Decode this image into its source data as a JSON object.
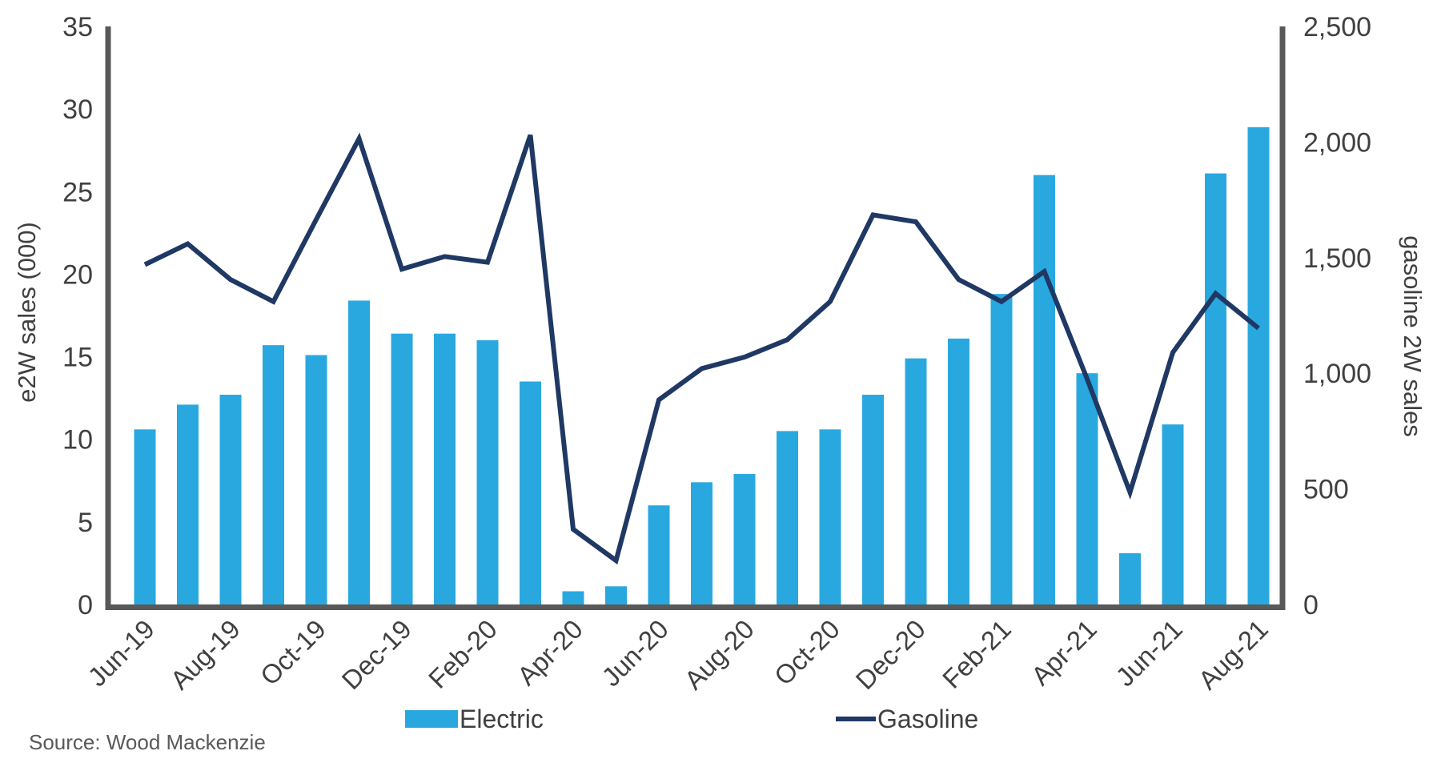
{
  "chart_data": {
    "type": "bar",
    "subtype": "combo-bar-line-dual-axis",
    "categories": [
      "Jun-19",
      "Jul-19",
      "Aug-19",
      "Sep-19",
      "Oct-19",
      "Nov-19",
      "Dec-19",
      "Jan-20",
      "Feb-20",
      "Mar-20",
      "Apr-20",
      "May-20",
      "Jun-20",
      "Jul-20",
      "Aug-20",
      "Sep-20",
      "Oct-20",
      "Nov-20",
      "Dec-20",
      "Jan-21",
      "Feb-21",
      "Mar-21",
      "Apr-21",
      "May-21",
      "Jun-21",
      "Jul-21",
      "Aug-21"
    ],
    "x_tick_labels": [
      "Jun-19",
      "Aug-19",
      "Oct-19",
      "Dec-19",
      "Feb-20",
      "Apr-20",
      "Jun-20",
      "Aug-20",
      "Oct-20",
      "Dec-20",
      "Feb-21",
      "Apr-21",
      "Jun-21",
      "Aug-21"
    ],
    "series": [
      {
        "name": "Electric",
        "type": "bar",
        "axis": "left",
        "color": "#29A8E0",
        "values": [
          10.6,
          12.1,
          12.7,
          15.7,
          15.1,
          18.4,
          16.4,
          16.4,
          16.0,
          13.5,
          0.8,
          1.1,
          6.0,
          7.4,
          7.9,
          10.5,
          10.6,
          12.7,
          14.9,
          16.1,
          18.8,
          26.0,
          14.0,
          3.1,
          10.9,
          26.1,
          28.9
        ]
      },
      {
        "name": "Gasoline",
        "type": "line",
        "axis": "right",
        "color": "#1F3864",
        "values": [
          1470,
          1560,
          1405,
          1310,
          1665,
          2015,
          1450,
          1505,
          1480,
          2030,
          325,
          190,
          885,
          1020,
          1070,
          1145,
          1310,
          1685,
          1655,
          1405,
          1310,
          1440,
          975,
          485,
          1090,
          1345,
          1195
        ]
      }
    ],
    "left_axis": {
      "label": "e2W sales (000)",
      "min": 0,
      "max": 35,
      "tick_step": 5,
      "tick_labels": [
        "0",
        "5",
        "10",
        "15",
        "20",
        "25",
        "30",
        "35"
      ]
    },
    "right_axis": {
      "label": "gasoline 2W sales",
      "min": 0,
      "max": 2500,
      "tick_step": 500,
      "tick_labels": [
        "0",
        "500",
        "1,000",
        "1,500",
        "2,000",
        "2,500"
      ]
    },
    "legend_position": "bottom",
    "grid": false
  },
  "legend": {
    "electric_label": "Electric",
    "gasoline_label": "Gasoline"
  },
  "titles": {
    "left_axis": "e2W sales (000)",
    "right_axis": "gasoline 2W sales"
  },
  "source_note": "Source: Wood Mackenzie",
  "colors": {
    "bar": "#29A8E0",
    "line": "#1F3864",
    "axis_line": "#595959",
    "tick_text": "#404040",
    "source_text": "#595959",
    "background": "#FFFFFF"
  }
}
